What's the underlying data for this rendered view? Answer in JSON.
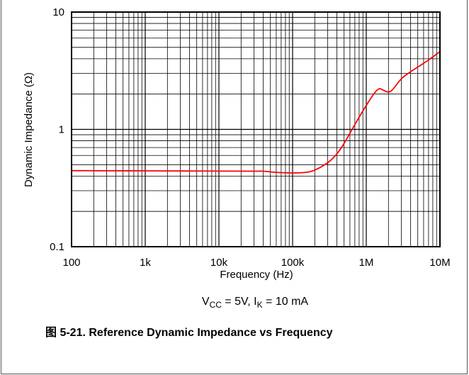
{
  "colors": {
    "curve": "#ff0000",
    "grid": "#000000",
    "background": "#ffffff"
  },
  "caption": "图 5-21. Reference Dynamic Impedance vs Frequency",
  "condition": {
    "v_main": "V",
    "v_sub": "CC",
    "v_rest": " = 5V, I",
    "i_sub": "K",
    "i_rest": " = 10 mA"
  },
  "chart_data": {
    "type": "line",
    "title": "",
    "xlabel": "Frequency (Hz)",
    "ylabel": "Dynamic Impedance (Ω)",
    "xscale": "log",
    "yscale": "log",
    "xlim": [
      100,
      10000000
    ],
    "ylim": [
      0.1,
      10
    ],
    "grid": true,
    "legend": "none",
    "x_ticks": [
      {
        "value": 100,
        "label": "100"
      },
      {
        "value": 1000,
        "label": "1k"
      },
      {
        "value": 10000,
        "label": "10k"
      },
      {
        "value": 100000,
        "label": "100k"
      },
      {
        "value": 1000000,
        "label": "1M"
      },
      {
        "value": 10000000,
        "label": "10M"
      }
    ],
    "y_ticks": [
      {
        "value": 0.1,
        "label": "0.1"
      },
      {
        "value": 1,
        "label": "1"
      },
      {
        "value": 10,
        "label": "10"
      }
    ],
    "series": [
      {
        "color": "#ff0000",
        "x": [
          100,
          300,
          1000,
          3000,
          10000,
          30000,
          40000,
          60000,
          100000,
          150000,
          200000,
          300000,
          400000,
          500000,
          700000,
          1000000,
          1300000,
          1500000,
          1700000,
          2000000,
          2300000,
          3000000,
          4000000,
          5000000,
          7000000,
          10000000
        ],
        "y": [
          0.445,
          0.444,
          0.443,
          0.442,
          0.441,
          0.44,
          0.44,
          0.43,
          0.425,
          0.43,
          0.45,
          0.52,
          0.62,
          0.76,
          1.1,
          1.6,
          2.05,
          2.22,
          2.16,
          2.08,
          2.2,
          2.7,
          3.1,
          3.4,
          3.9,
          4.6
        ]
      }
    ]
  }
}
